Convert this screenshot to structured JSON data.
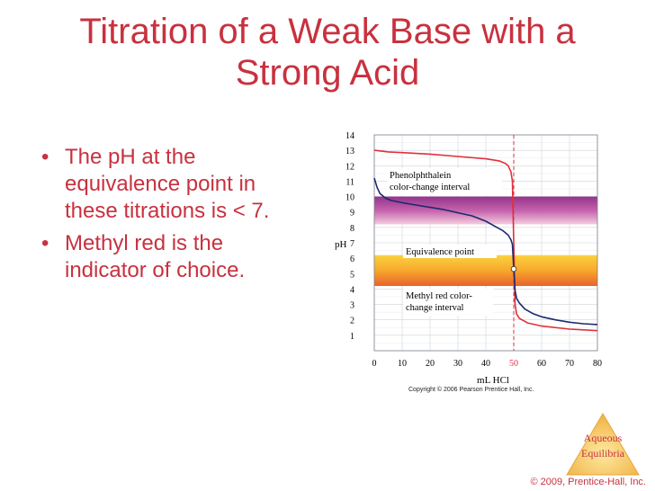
{
  "slide": {
    "title_line1": "Titration of a Weak Base with a",
    "title_line2": "Strong Acid",
    "bullets": [
      "The pH at the equivalence point in these titrations is < 7.",
      "Methyl red is the indicator of choice."
    ],
    "chart_copyright": "Copyright © 2006 Pearson Prentice Hall, Inc.",
    "badge": {
      "line1": "Aqueous",
      "line2": "Equilibria"
    },
    "footer": "© 2009, Prentice-Hall, Inc."
  },
  "colors": {
    "title": "#c8313f",
    "strong_base_curve": "#e0303c",
    "weak_base_curve": "#1c2a6e",
    "equivalence_line": "#e0303c",
    "phenolphthalein_band": "#a0358c",
    "methyl_red_band": "#f59a1e"
  },
  "chart_data": {
    "type": "line",
    "xlabel": "mL HCl",
    "ylabel": "pH",
    "xlim": [
      0,
      80
    ],
    "ylim": [
      0,
      14
    ],
    "xticks": [
      0,
      10,
      20,
      30,
      40,
      50,
      60,
      70,
      80
    ],
    "yticks": [
      1,
      2,
      3,
      4,
      5,
      6,
      7,
      8,
      9,
      10,
      11,
      12,
      13,
      14
    ],
    "highlight_xtick": 50,
    "equivalence_x": 50,
    "grid": true,
    "bands": [
      {
        "label": "Phenolphthalein color-change interval",
        "ymin": 8.2,
        "ymax": 10.0
      },
      {
        "label": "Methyl red color-change interval",
        "ymin": 4.2,
        "ymax": 6.2
      }
    ],
    "annotations": [
      {
        "label": "Phenolphthalein color-change interval"
      },
      {
        "label": "Equivalence point",
        "x": 50,
        "y": 5.3
      },
      {
        "label": "Methyl red color-change interval"
      }
    ],
    "series": [
      {
        "x": [
          0,
          5,
          10,
          20,
          30,
          40,
          45,
          47,
          48,
          49,
          49.5,
          50,
          50.5,
          51,
          52,
          55,
          60,
          70,
          80
        ],
        "y": [
          13.0,
          12.9,
          12.85,
          12.75,
          12.6,
          12.45,
          12.3,
          12.15,
          12.0,
          11.6,
          11.0,
          7.0,
          3.0,
          2.4,
          2.1,
          1.8,
          1.6,
          1.4,
          1.3
        ]
      },
      {
        "x": [
          0,
          1,
          2,
          4,
          6,
          10,
          15,
          20,
          25,
          30,
          35,
          40,
          44,
          46,
          48,
          49,
          49.5,
          50,
          50.5,
          51,
          52,
          54,
          57,
          60,
          65,
          70,
          75,
          80
        ],
        "y": [
          11.2,
          10.6,
          10.2,
          9.9,
          9.75,
          9.6,
          9.45,
          9.3,
          9.15,
          8.95,
          8.75,
          8.4,
          8.0,
          7.8,
          7.5,
          7.2,
          6.9,
          5.3,
          3.9,
          3.4,
          3.1,
          2.7,
          2.4,
          2.2,
          2.0,
          1.85,
          1.75,
          1.7
        ]
      }
    ]
  }
}
